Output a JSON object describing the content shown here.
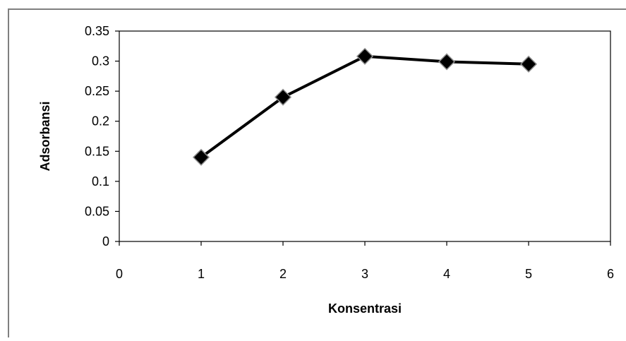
{
  "chart_data": {
    "type": "line",
    "title": "",
    "xlabel": "Konsentrasi",
    "ylabel": "Adsorbansi",
    "xlim": [
      0,
      6
    ],
    "ylim": [
      0,
      0.35
    ],
    "x_ticks": [
      "0",
      "1",
      "2",
      "3",
      "4",
      "5",
      "6"
    ],
    "y_ticks": [
      "0",
      "0.05",
      "0.1",
      "0.15",
      "0.2",
      "0.25",
      "0.3",
      "0.35"
    ],
    "grid": false,
    "legend": "none",
    "series": [
      {
        "x": [
          1,
          2,
          3,
          4,
          5
        ],
        "y": [
          0.14,
          0.24,
          0.308,
          0.299,
          0.295
        ],
        "color": "#000000",
        "marker": "diamond"
      }
    ]
  }
}
